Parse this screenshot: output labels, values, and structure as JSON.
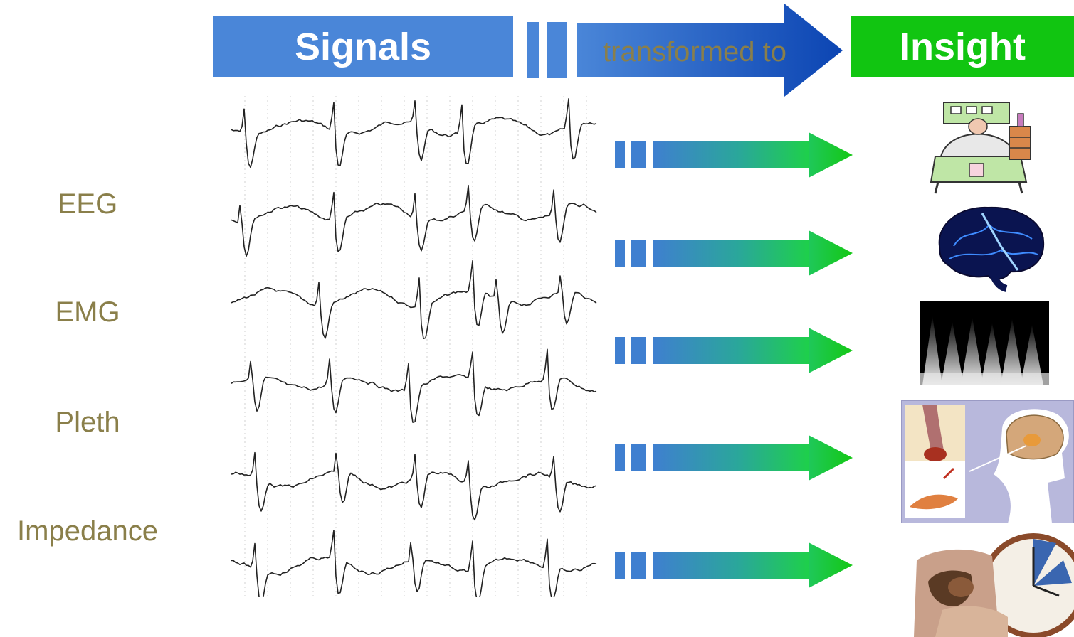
{
  "header": {
    "signals_label": "Signals",
    "transform_label": "transformed to",
    "insight_label": "Insight"
  },
  "signal_labels": [
    "EEG",
    "EMG",
    "Pleth",
    "Impedance"
  ],
  "colors": {
    "signals_blue": "#4a86d8",
    "arrow_dark_blue": "#0c45b3",
    "insight_green": "#11c511",
    "label_olive": "#8a7f4a",
    "row_arrow_start": "#3f7fd0",
    "row_arrow_end": "#1ed04a"
  },
  "insight_images": [
    {
      "icon": "patient-in-hospital-bed-icon"
    },
    {
      "icon": "glowing-brain-icon"
    },
    {
      "icon": "spectrogram-icon"
    },
    {
      "icon": "airway-and-brain-anatomy-icon"
    },
    {
      "icon": "sleeping-person-with-clock-icon"
    }
  ]
}
